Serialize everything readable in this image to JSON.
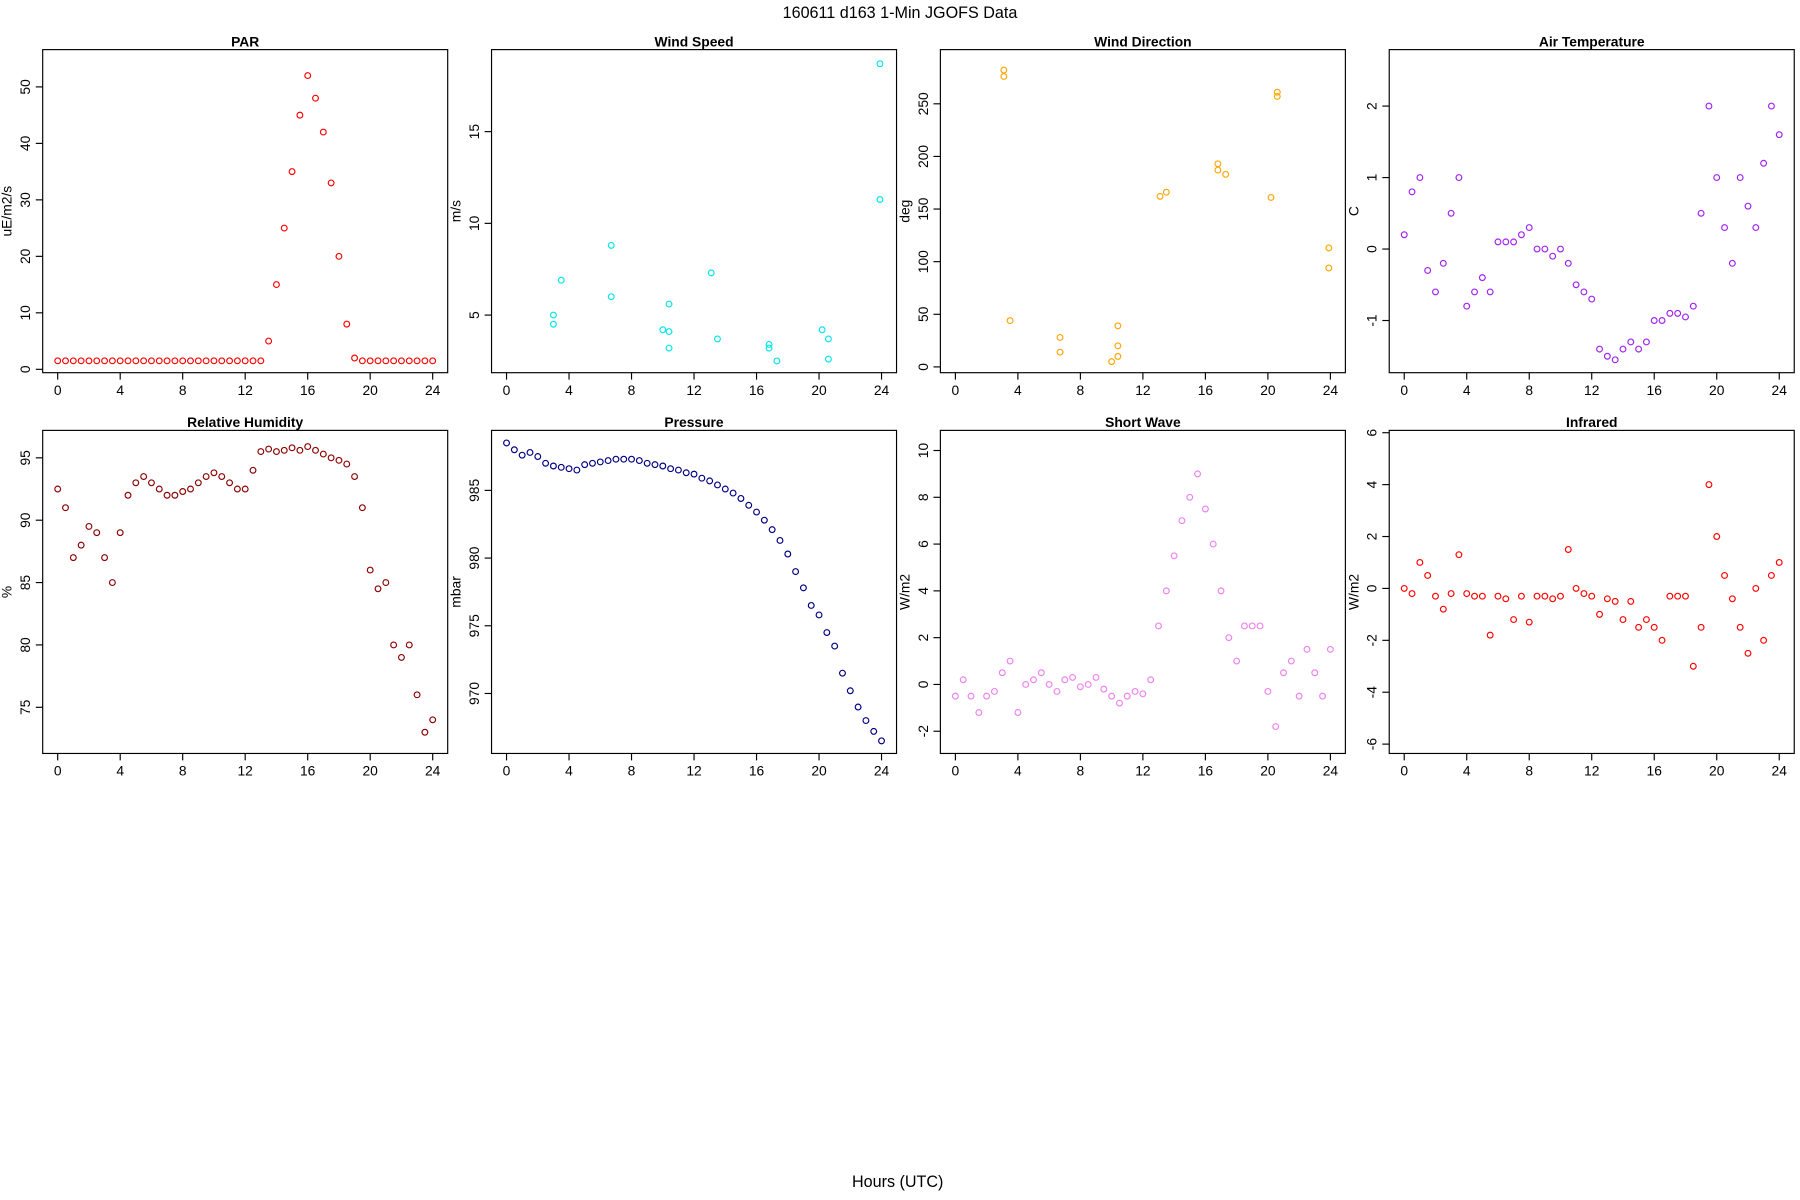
{
  "title": "160611   d163   1-Min  JGOFS Data",
  "x_label": "Hours (UTC)",
  "chart_data": [
    {
      "type": "scatter",
      "title": "PAR",
      "y_label": "uE/m2/s",
      "color": "#ff0000",
      "x": [
        0,
        0.5,
        1,
        1.5,
        2,
        2.5,
        3,
        3.5,
        4,
        4.5,
        5,
        5.5,
        6,
        6.5,
        7,
        7.5,
        8,
        8.5,
        9,
        9.5,
        10,
        10.5,
        11,
        11.5,
        12,
        12.5,
        13,
        13.5,
        14,
        14.5,
        15,
        15.5,
        16,
        16.5,
        17,
        17.5,
        18,
        18.5,
        19,
        19.5,
        20,
        20.5,
        21,
        21.5,
        22,
        22.5,
        23,
        23.5,
        24
      ],
      "values": [
        1.5,
        1.5,
        1.5,
        1.5,
        1.5,
        1.5,
        1.5,
        1.5,
        1.5,
        1.5,
        1.5,
        1.5,
        1.5,
        1.5,
        1.5,
        1.5,
        1.5,
        1.5,
        1.5,
        1.5,
        1.5,
        1.5,
        1.5,
        1.5,
        1.5,
        1.5,
        1.5,
        5,
        15,
        25,
        35,
        45,
        52,
        48,
        42,
        33,
        20,
        8,
        2,
        1.5,
        1.5,
        1.5,
        1.5,
        1.5,
        1.5,
        1.5,
        1.5,
        1.5,
        1.5
      ],
      "xlim": [
        -0.96,
        24.96
      ],
      "xticks": [
        0,
        4,
        8,
        12,
        16,
        20,
        24
      ],
      "ylim": [
        -0.6,
        56.6
      ],
      "yticks": [
        0,
        10,
        20,
        30,
        40,
        50
      ]
    },
    {
      "type": "scatter",
      "title": "Wind Speed",
      "y_label": "m/s",
      "color": "#00e5ee",
      "x": [
        3.0,
        3.0,
        3.5,
        6.7,
        6.7,
        10.0,
        10.4,
        10.4,
        10.4,
        13.1,
        13.5,
        16.8,
        16.8,
        17.3,
        20.2,
        20.6,
        20.6,
        23.9,
        23.9
      ],
      "values": [
        5.0,
        4.5,
        6.9,
        8.8,
        6.0,
        4.2,
        4.1,
        5.6,
        3.2,
        7.3,
        3.7,
        3.4,
        3.2,
        2.5,
        4.2,
        3.7,
        2.6,
        18.7,
        11.3
      ],
      "xlim": [
        -0.96,
        24.96
      ],
      "xticks": [
        0,
        4,
        8,
        12,
        16,
        20,
        24
      ],
      "ylim": [
        1.86,
        19.47
      ],
      "yticks": [
        5,
        10,
        15
      ]
    },
    {
      "type": "scatter",
      "title": "Wind Direction",
      "y_label": "deg",
      "color": "#ffa500",
      "x": [
        3.1,
        3.1,
        3.5,
        6.7,
        6.7,
        10.0,
        10.4,
        10.4,
        10.4,
        13.1,
        13.5,
        16.8,
        16.8,
        17.3,
        20.2,
        20.6,
        20.6,
        23.9,
        23.9
      ],
      "values": [
        282,
        276,
        44,
        28,
        14,
        5,
        10,
        20,
        39,
        162,
        166,
        193,
        187,
        183,
        161,
        261,
        257,
        113,
        94
      ],
      "xlim": [
        -0.96,
        24.96
      ],
      "xticks": [
        0,
        4,
        8,
        12,
        16,
        20,
        24
      ],
      "ylim": [
        -5.5,
        301.5
      ],
      "yticks": [
        0,
        50,
        100,
        150,
        200,
        250
      ]
    },
    {
      "type": "scatter",
      "title": "Air Temperature",
      "y_label": "C",
      "color": "#a020f0",
      "x": [
        0,
        0.5,
        1,
        1.5,
        2,
        2.5,
        3,
        3.5,
        4,
        4.5,
        5,
        5.5,
        6,
        6.5,
        7,
        7.5,
        8,
        8.5,
        9,
        9.5,
        10,
        10.5,
        11,
        11.5,
        12,
        12.5,
        13,
        13.5,
        14,
        14.5,
        15,
        15.5,
        16,
        16.5,
        17,
        17.5,
        18,
        18.5,
        19,
        19.5,
        20,
        20.5,
        21,
        21.5,
        22,
        22.5,
        23,
        23.5,
        24
      ],
      "values": [
        0.2,
        0.8,
        1.0,
        -0.3,
        -0.6,
        -0.2,
        0.5,
        1.0,
        -0.8,
        -0.6,
        -0.4,
        -0.6,
        0.1,
        0.1,
        0.1,
        0.2,
        0.3,
        0.0,
        0.0,
        -0.1,
        0.0,
        -0.2,
        -0.5,
        -0.6,
        -0.7,
        -1.4,
        -1.5,
        -1.55,
        -1.4,
        -1.3,
        -1.4,
        -1.3,
        -1.0,
        -1.0,
        -0.9,
        -0.9,
        -0.95,
        -0.8,
        0.5,
        2.0,
        1.0,
        0.3,
        -0.2,
        1.0,
        0.6,
        0.3,
        1.2,
        2.0,
        1.6
      ],
      "xlim": [
        -0.96,
        24.96
      ],
      "xticks": [
        0,
        4,
        8,
        12,
        16,
        20,
        24
      ],
      "ylim": [
        -1.73,
        2.79
      ],
      "yticks": [
        -1,
        0,
        1,
        2
      ]
    },
    {
      "type": "scatter",
      "title": "Relative Humidity",
      "y_label": "%",
      "color": "#8b0000",
      "x": [
        0,
        0.5,
        1,
        1.5,
        2,
        2.5,
        3,
        3.5,
        4,
        4.5,
        5,
        5.5,
        6,
        6.5,
        7,
        7.5,
        8,
        8.5,
        9,
        9.5,
        10,
        10.5,
        11,
        11.5,
        12,
        12.5,
        13,
        13.5,
        14,
        14.5,
        15,
        15.5,
        16,
        16.5,
        17,
        17.5,
        18,
        18.5,
        19,
        19.5,
        20,
        20.5,
        21,
        21.5,
        22,
        22.5,
        23,
        23.5,
        24
      ],
      "values": [
        92.5,
        91,
        87,
        88,
        89.5,
        89,
        87,
        85,
        89,
        92,
        93,
        93.5,
        93,
        92.5,
        92,
        92,
        92.3,
        92.5,
        93,
        93.5,
        93.8,
        93.5,
        93,
        92.5,
        92.5,
        94,
        95.5,
        95.7,
        95.5,
        95.6,
        95.8,
        95.6,
        95.9,
        95.6,
        95.3,
        95,
        94.8,
        94.5,
        93.5,
        91,
        86,
        84.5,
        85,
        80,
        79,
        80,
        76,
        73,
        74
      ],
      "xlim": [
        -0.96,
        24.96
      ],
      "xticks": [
        0,
        4,
        8,
        12,
        16,
        20,
        24
      ],
      "ylim": [
        71.3,
        97.2
      ],
      "yticks": [
        75,
        80,
        85,
        90,
        95
      ]
    },
    {
      "type": "scatter",
      "title": "Pressure",
      "y_label": "mbar",
      "color": "#000080",
      "x": [
        0,
        0.5,
        1,
        1.5,
        2,
        2.5,
        3,
        3.5,
        4,
        4.5,
        5,
        5.5,
        6,
        6.5,
        7,
        7.5,
        8,
        8.5,
        9,
        9.5,
        10,
        10.5,
        11,
        11.5,
        12,
        12.5,
        13,
        13.5,
        14,
        14.5,
        15,
        15.5,
        16,
        16.5,
        17,
        17.5,
        18,
        18.5,
        19,
        19.5,
        20,
        20.5,
        21,
        21.5,
        22,
        22.5,
        23,
        23.5,
        24
      ],
      "values": [
        988.5,
        988,
        987.6,
        987.8,
        987.5,
        987,
        986.8,
        986.7,
        986.6,
        986.5,
        986.9,
        987,
        987.1,
        987.2,
        987.3,
        987.3,
        987.3,
        987.2,
        987.0,
        986.9,
        986.8,
        986.6,
        986.5,
        986.3,
        986.2,
        985.9,
        985.7,
        985.4,
        985.1,
        984.8,
        984.4,
        983.9,
        983.4,
        982.8,
        982.1,
        981.3,
        980.3,
        979,
        977.8,
        976.5,
        975.8,
        974.5,
        973.5,
        971.5,
        970.2,
        969,
        968,
        967.2,
        966.5
      ],
      "xlim": [
        -0.96,
        24.96
      ],
      "xticks": [
        0,
        4,
        8,
        12,
        16,
        20,
        24
      ],
      "ylim": [
        965.57,
        989.43
      ],
      "yticks": [
        970,
        975,
        980,
        985
      ]
    },
    {
      "type": "scatter",
      "title": "Short Wave",
      "y_label": "W/m2",
      "color": "#ee82ee",
      "x": [
        0,
        0.5,
        1,
        1.5,
        2,
        2.5,
        3,
        3.5,
        4,
        4.5,
        5,
        5.5,
        6,
        6.5,
        7,
        7.5,
        8,
        8.5,
        9,
        9.5,
        10,
        10.5,
        11,
        11.5,
        12,
        12.5,
        13,
        13.5,
        14,
        14.5,
        15,
        15.5,
        16,
        16.5,
        17,
        17.5,
        18,
        18.5,
        19,
        19.5,
        20,
        20.5,
        21,
        21.5,
        22,
        22.5,
        23,
        23.5,
        24
      ],
      "values": [
        -0.5,
        0.2,
        -0.5,
        -1.2,
        -0.5,
        -0.3,
        0.5,
        1.0,
        -1.2,
        0,
        0.2,
        0.5,
        0,
        -0.3,
        0.2,
        0.3,
        -0.1,
        0,
        0.3,
        -0.2,
        -0.5,
        -0.8,
        -0.5,
        -0.3,
        -0.4,
        0.2,
        2.5,
        4,
        5.5,
        7,
        8,
        9,
        7.5,
        6,
        4,
        2,
        1,
        2.5,
        2.5,
        2.5,
        -0.3,
        -1.8,
        0.5,
        1,
        -0.5,
        1.5,
        0.5,
        -0.5,
        1.5
      ],
      "xlim": [
        -0.96,
        24.96
      ],
      "xticks": [
        0,
        4,
        8,
        12,
        16,
        20,
        24
      ],
      "ylim": [
        -2.95,
        10.86
      ],
      "yticks": [
        -2,
        0,
        2,
        4,
        6,
        8,
        10
      ]
    },
    {
      "type": "scatter",
      "title": "Infrared",
      "y_label": "W/m2",
      "color": "#ff0000",
      "x": [
        0,
        0.5,
        1,
        1.5,
        2,
        2.5,
        3,
        3.5,
        4,
        4.5,
        5,
        5.5,
        6,
        6.5,
        7,
        7.5,
        8,
        8.5,
        9,
        9.5,
        10,
        10.5,
        11,
        11.5,
        12,
        12.5,
        13,
        13.5,
        14,
        14.5,
        15,
        15.5,
        16,
        16.5,
        17,
        17.5,
        18,
        18.5,
        19,
        19.5,
        20,
        20.5,
        21,
        21.5,
        22,
        22.5,
        23,
        23.5,
        24
      ],
      "values": [
        0,
        -0.2,
        1,
        0.5,
        -0.3,
        -0.8,
        -0.2,
        1.3,
        -0.2,
        -0.3,
        -0.3,
        -1.8,
        -0.3,
        -0.4,
        -1.2,
        -0.3,
        -1.3,
        -0.3,
        -0.3,
        -0.4,
        -0.3,
        1.5,
        0,
        -0.2,
        -0.3,
        -1.0,
        -0.4,
        -0.5,
        -1.2,
        -0.5,
        -1.5,
        -1.2,
        -1.5,
        -2,
        -0.3,
        -0.3,
        -0.3,
        -3,
        -1.5,
        4,
        2,
        0.5,
        -0.4,
        -1.5,
        -2.5,
        0,
        -2,
        0.5,
        1
      ],
      "xlim": [
        -0.96,
        24.96
      ],
      "xticks": [
        0,
        4,
        8,
        12,
        16,
        20,
        24
      ],
      "ylim": [
        -6.36,
        6.09
      ],
      "yticks": [
        -6,
        -4,
        -2,
        0,
        2,
        4,
        6
      ]
    }
  ]
}
